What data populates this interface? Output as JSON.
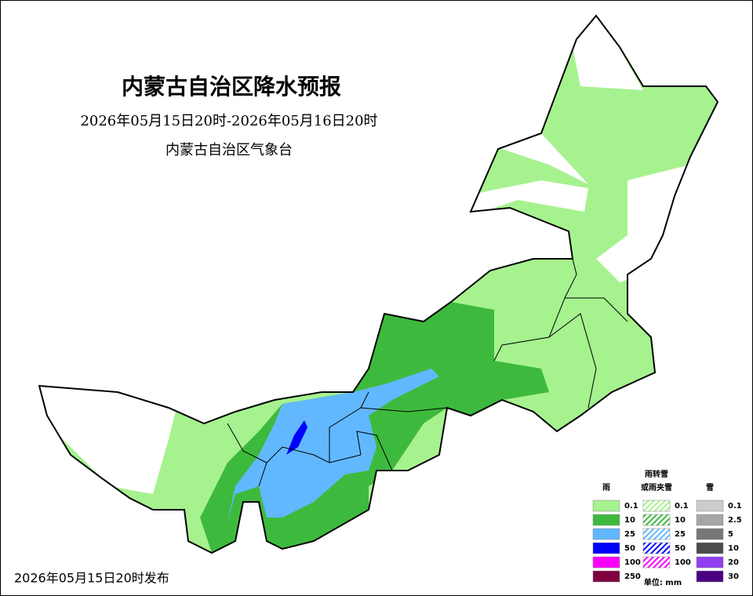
{
  "header": {
    "title": "内蒙古自治区降水预报",
    "period": "2026年05月15日20时-2026年05月16日20时",
    "issuer": "内蒙古自治区气象台"
  },
  "footer": {
    "release": "2026年05月15日20时发布"
  },
  "legend": {
    "columns": [
      {
        "heading": [
          "雨"
        ],
        "hatched": false,
        "items": [
          {
            "label": "0.1",
            "color": "#a6f28f"
          },
          {
            "label": "10",
            "color": "#3dba3d"
          },
          {
            "label": "25",
            "color": "#61b8ff"
          },
          {
            "label": "50",
            "color": "#0000fe"
          },
          {
            "label": "100",
            "color": "#fa00fa"
          },
          {
            "label": "250",
            "color": "#800040"
          }
        ]
      },
      {
        "heading": [
          "雨转雪",
          "或雨夹雪"
        ],
        "hatched": true,
        "items": [
          {
            "label": "0.1",
            "color": "#a6f28f"
          },
          {
            "label": "10",
            "color": "#3dba3d"
          },
          {
            "label": "25",
            "color": "#61b8ff"
          },
          {
            "label": "50",
            "color": "#0000fe"
          },
          {
            "label": "100",
            "color": "#fa00fa"
          }
        ]
      },
      {
        "heading": [
          "雪"
        ],
        "hatched": false,
        "items": [
          {
            "label": "0.1",
            "color": "#cccccc"
          },
          {
            "label": "2.5",
            "color": "#a6a6a6"
          },
          {
            "label": "5",
            "color": "#777777"
          },
          {
            "label": "10",
            "color": "#4c4c4c"
          },
          {
            "label": "20",
            "color": "#8f3ff0"
          },
          {
            "label": "30",
            "color": "#4b0082"
          }
        ]
      }
    ],
    "unit": "单位: mm"
  }
}
